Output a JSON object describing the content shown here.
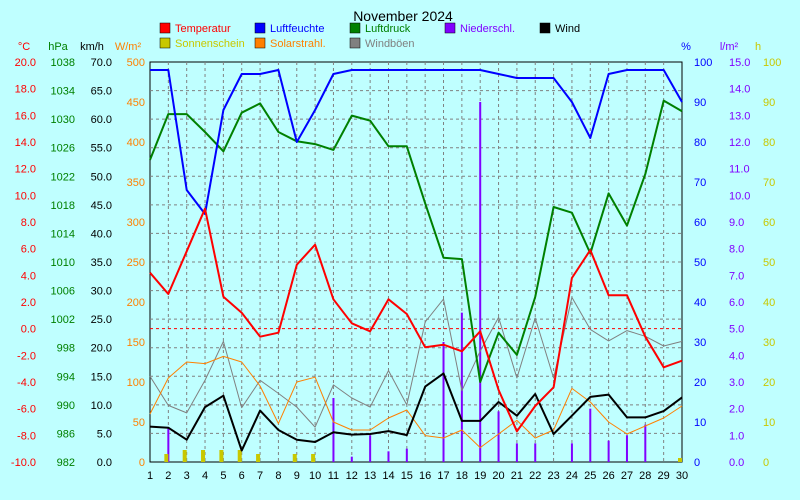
{
  "chart_data": {
    "type": "line",
    "title": "November 2024",
    "x": [
      1,
      2,
      3,
      4,
      5,
      6,
      7,
      8,
      9,
      10,
      11,
      12,
      13,
      14,
      15,
      16,
      17,
      18,
      19,
      20,
      21,
      22,
      23,
      24,
      25,
      26,
      27,
      28,
      29,
      30
    ],
    "xlim": [
      1,
      30
    ],
    "grid": true,
    "legend_position": "top",
    "axes": [
      {
        "id": "temp",
        "unit": "°C",
        "side": "left",
        "range": [
          -10,
          20
        ],
        "ticks": [
          "20.0",
          "18.0",
          "16.0",
          "14.0",
          "12.0",
          "10.0",
          "8.0",
          "6.0",
          "4.0",
          "2.0",
          "0.0",
          "-2.0",
          "-4.0",
          "-6.0",
          "-8.0",
          "-10.0"
        ],
        "color": "#ff0000"
      },
      {
        "id": "press",
        "unit": "hPa",
        "side": "left",
        "range": [
          982,
          1038
        ],
        "ticks": [
          "1038",
          "1034",
          "1030",
          "1026",
          "1022",
          "1018",
          "1014",
          "1010",
          "1006",
          "1002",
          "998",
          "994",
          "990",
          "986",
          "982"
        ],
        "color": "#008000"
      },
      {
        "id": "wind",
        "unit": "km/h",
        "side": "left",
        "range": [
          0,
          70
        ],
        "ticks": [
          "70.0",
          "65.0",
          "60.0",
          "55.0",
          "50.0",
          "45.0",
          "40.0",
          "35.0",
          "30.0",
          "25.0",
          "20.0",
          "15.0",
          "10.0",
          "5.0",
          "0.0"
        ],
        "color": "#000000"
      },
      {
        "id": "solar",
        "unit": "W/m²",
        "side": "left",
        "range": [
          0,
          500
        ],
        "ticks": [
          "500",
          "450",
          "400",
          "350",
          "300",
          "250",
          "200",
          "150",
          "100",
          "50",
          "0"
        ],
        "color": "#ff8000"
      },
      {
        "id": "hum",
        "unit": "%",
        "side": "right",
        "range": [
          0,
          100
        ],
        "ticks": [
          "100",
          "90",
          "80",
          "70",
          "60",
          "50",
          "40",
          "30",
          "20",
          "10",
          "0"
        ],
        "color": "#0000ff"
      },
      {
        "id": "precip",
        "unit": "l/m²",
        "side": "right",
        "range": [
          0,
          15
        ],
        "ticks": [
          "15.0",
          "14.0",
          "13.0",
          "12.0",
          "11.0",
          "10.0",
          "9.0",
          "8.0",
          "7.0",
          "6.0",
          "5.0",
          "4.0",
          "3.0",
          "2.0",
          "1.0",
          "0.0"
        ],
        "color": "#8000ff"
      },
      {
        "id": "sun",
        "unit": "h",
        "side": "right",
        "range": [
          0,
          100
        ],
        "ticks": [
          "100",
          "90",
          "80",
          "70",
          "60",
          "50",
          "40",
          "30",
          "20",
          "10",
          "0"
        ],
        "color": "#c8c800"
      }
    ],
    "series": [
      {
        "name": "Temperatur",
        "axis": "temp",
        "kind": "line",
        "color": "#ff0000",
        "width": 2,
        "values": [
          4.2,
          2.6,
          5.8,
          9.0,
          2.4,
          1.2,
          -0.6,
          -0.3,
          4.8,
          6.3,
          2.2,
          0.4,
          -0.2,
          2.2,
          1.1,
          -1.4,
          -1.2,
          -1.7,
          -0.2,
          -4.6,
          -7.7,
          -5.8,
          -4.4,
          3.8,
          5.9,
          2.5,
          2.5,
          -0.6,
          -2.9,
          -2.4
        ]
      },
      {
        "name": "Luftfeuchte",
        "axis": "hum",
        "kind": "line",
        "color": "#0000ff",
        "width": 2,
        "values": [
          98,
          98,
          68,
          62,
          88,
          97,
          97,
          98,
          80,
          88,
          97,
          98,
          98,
          98,
          98,
          98,
          98,
          98,
          98,
          97,
          96,
          96,
          96,
          90,
          81,
          97,
          98,
          98,
          98,
          90
        ]
      },
      {
        "name": "Luftdruck",
        "axis": "press",
        "kind": "line",
        "color": "#008000",
        "width": 2,
        "values": [
          1024.3,
          1030.7,
          1030.7,
          1028.2,
          1025.5,
          1030.9,
          1032.2,
          1028.2,
          1026.9,
          1026.5,
          1025.7,
          1030.5,
          1029.8,
          1026.2,
          1026.2,
          1018.2,
          1010.6,
          1010.4,
          993.2,
          1000.1,
          997.0,
          1005.1,
          1017.7,
          1016.9,
          1011.2,
          1019.6,
          1015.1,
          1022.3,
          1032.6,
          1031.1
        ]
      },
      {
        "name": "Wind",
        "axis": "wind",
        "kind": "line",
        "color": "#000000",
        "width": 2,
        "values": [
          6.2,
          6.0,
          3.9,
          9.6,
          11.6,
          2.0,
          9.0,
          5.6,
          3.9,
          3.5,
          5.2,
          4.8,
          4.9,
          5.4,
          4.7,
          13.2,
          15.5,
          7.2,
          7.2,
          10.5,
          8.1,
          11.9,
          4.9,
          8.1,
          11.4,
          11.8,
          7.8,
          7.8,
          8.9,
          11.3
        ]
      },
      {
        "name": "Windböen",
        "axis": "wind",
        "kind": "line",
        "color": "#808080",
        "width": 1,
        "values": [
          15.0,
          9.9,
          8.6,
          14.3,
          21.1,
          9.5,
          14.3,
          12.0,
          9.6,
          6.1,
          13.5,
          11.2,
          9.6,
          16.0,
          10.0,
          24.5,
          28.5,
          12.5,
          19.4,
          25.3,
          14.7,
          25.2,
          14.7,
          28.8,
          23.2,
          21.2,
          23.0,
          22.0,
          20.3,
          21.1
        ]
      },
      {
        "name": "Solarstrahl.",
        "axis": "solar",
        "kind": "line",
        "color": "#ff8000",
        "width": 1,
        "values": [
          60,
          105,
          125,
          123,
          132,
          125,
          95,
          48,
          100,
          106,
          50,
          40,
          40,
          55,
          65,
          33,
          30,
          40,
          18,
          35,
          52,
          30,
          40,
          92,
          75,
          50,
          35,
          45,
          55,
          70
        ]
      },
      {
        "name": "Niederschl.",
        "axis": "precip",
        "kind": "bar",
        "color": "#8000ff",
        "values": [
          0,
          1.3,
          0,
          0,
          0,
          0,
          0,
          0,
          0,
          0,
          2.4,
          0.2,
          1.0,
          0.4,
          0.5,
          0,
          4.5,
          5.6,
          13.5,
          1.9,
          0.7,
          0.7,
          0,
          0.7,
          2.0,
          0.8,
          1.0,
          1.4,
          0,
          0
        ]
      },
      {
        "name": "Sonnenschein",
        "axis": "sun",
        "kind": "bar",
        "color": "#c8c800",
        "values": [
          0,
          2,
          3,
          3,
          3,
          3,
          2,
          0,
          2,
          2,
          0,
          0,
          0,
          0,
          0,
          0,
          0,
          0,
          0,
          0,
          0,
          0,
          0,
          0,
          0,
          0,
          0,
          0,
          0,
          1
        ]
      }
    ],
    "zero_line_axis": "temp",
    "legend": [
      {
        "label": "Temperatur",
        "color": "#ff0000",
        "row": 0
      },
      {
        "label": "Luftfeuchte",
        "color": "#0000ff",
        "row": 0
      },
      {
        "label": "Luftdruck",
        "color": "#008000",
        "row": 0
      },
      {
        "label": "Niederschl.",
        "color": "#8000ff",
        "row": 0
      },
      {
        "label": "Wind",
        "color": "#000000",
        "row": 0
      },
      {
        "label": "Sonnenschein",
        "color": "#c8c800",
        "row": 1
      },
      {
        "label": "Solarstrahl.",
        "color": "#ff8000",
        "row": 1
      },
      {
        "label": "Windböen",
        "color": "#808080",
        "row": 1
      }
    ]
  }
}
